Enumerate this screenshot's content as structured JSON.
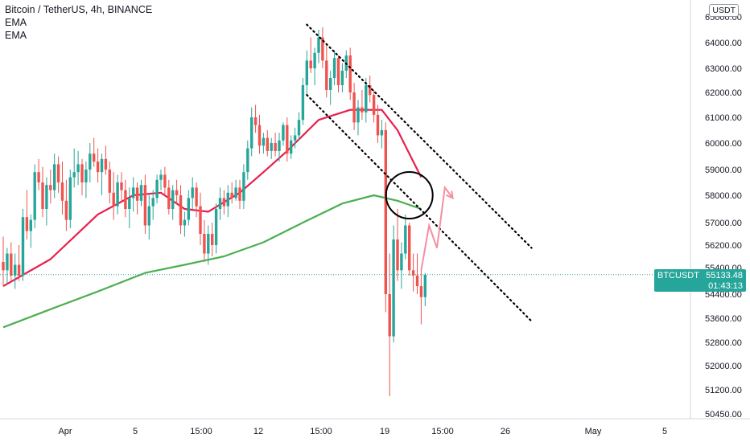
{
  "legend": {
    "title": "Bitcoin / TetherUS, 4h, BINANCE",
    "ema1": "EMA",
    "ema2": "EMA"
  },
  "price_axis": {
    "currency": "USDT",
    "ticks": [
      "65000.00",
      "64000.00",
      "63000.00",
      "62000.00",
      "61000.00",
      "60000.00",
      "59000.00",
      "58000.00",
      "57000.00",
      "56200.00",
      "55400.00",
      "54400.00",
      "53600.00",
      "52800.00",
      "52000.00",
      "51200.00",
      "50450.00"
    ]
  },
  "time_axis": {
    "ticks": [
      "Apr",
      "5",
      "15:00",
      "12",
      "15:00",
      "19",
      "15:00",
      "26",
      "May",
      "5"
    ]
  },
  "last_price": {
    "symbol": "BTCUSDT",
    "price": "55133.48",
    "countdown": "01:43:13"
  },
  "colors": {
    "up": "#26a69a",
    "down": "#ef5350",
    "ema_fast": "#e91e4d",
    "ema_slow": "#4caf50",
    "projection": "#f48fa3",
    "last_price_line": "#26a69a"
  },
  "chart_data": {
    "type": "candlestick",
    "title": "Bitcoin / TetherUS, 4h, BINANCE",
    "candles": [
      [
        55600,
        56500,
        54700,
        55300
      ],
      [
        55300,
        56100,
        54800,
        55900
      ],
      [
        55900,
        56300,
        54900,
        55100
      ],
      [
        55100,
        55900,
        54600,
        55500
      ],
      [
        55500,
        56200,
        54900,
        55100
      ],
      [
        55100,
        57500,
        54900,
        57200
      ],
      [
        57200,
        58200,
        56400,
        56700
      ],
      [
        56700,
        57300,
        56100,
        57100
      ],
      [
        57100,
        59200,
        56800,
        58900
      ],
      [
        58900,
        59400,
        58200,
        58500
      ],
      [
        58500,
        59100,
        57200,
        57500
      ],
      [
        57500,
        58700,
        56900,
        58400
      ],
      [
        58400,
        59000,
        57700,
        58200
      ],
      [
        58200,
        59600,
        57900,
        59200
      ],
      [
        59200,
        59500,
        58100,
        58500
      ],
      [
        58500,
        59300,
        57300,
        57800
      ],
      [
        57800,
        58600,
        56700,
        57100
      ],
      [
        57100,
        59000,
        56800,
        58700
      ],
      [
        58700,
        59800,
        58300,
        58900
      ],
      [
        58900,
        59700,
        58400,
        59200
      ],
      [
        59200,
        59400,
        58000,
        58500
      ],
      [
        58500,
        59300,
        57900,
        59000
      ],
      [
        59000,
        60000,
        58500,
        59600
      ],
      [
        59600,
        60200,
        59100,
        59300
      ],
      [
        59300,
        59800,
        58500,
        58900
      ],
      [
        58900,
        59600,
        58000,
        59400
      ],
      [
        59400,
        59900,
        58800,
        59000
      ],
      [
        59000,
        59300,
        57700,
        58100
      ],
      [
        58100,
        58900,
        57100,
        57600
      ],
      [
        57600,
        58800,
        57300,
        58500
      ],
      [
        58500,
        58900,
        57800,
        58200
      ],
      [
        58200,
        58600,
        57200,
        57500
      ],
      [
        57500,
        58300,
        56800,
        57900
      ],
      [
        57900,
        58700,
        57400,
        58300
      ],
      [
        58300,
        58500,
        57300,
        57800
      ],
      [
        57800,
        58600,
        57600,
        58400
      ],
      [
        58400,
        58800,
        56600,
        56900
      ],
      [
        56900,
        58000,
        56400,
        57600
      ],
      [
        57600,
        58200,
        57100,
        57900
      ],
      [
        57900,
        58800,
        57700,
        58600
      ],
      [
        58600,
        59000,
        58200,
        58800
      ],
      [
        58800,
        59100,
        58000,
        58300
      ],
      [
        58300,
        58600,
        57300,
        57500
      ],
      [
        57500,
        58400,
        57100,
        58200
      ],
      [
        58200,
        58600,
        57700,
        58000
      ],
      [
        58000,
        58400,
        56600,
        56900
      ],
      [
        56900,
        57400,
        56500,
        57100
      ],
      [
        57100,
        58200,
        56900,
        57900
      ],
      [
        57900,
        58700,
        57500,
        58300
      ],
      [
        58300,
        58500,
        57200,
        57600
      ],
      [
        57600,
        58100,
        56200,
        56600
      ],
      [
        56600,
        57100,
        55600,
        55900
      ],
      [
        55900,
        56900,
        55500,
        56600
      ],
      [
        56600,
        57000,
        55800,
        56200
      ],
      [
        56200,
        57700,
        55900,
        57500
      ],
      [
        57500,
        58300,
        57100,
        57900
      ],
      [
        57900,
        58200,
        57300,
        57600
      ],
      [
        57600,
        58400,
        57200,
        58100
      ],
      [
        58100,
        58500,
        57700,
        57900
      ],
      [
        57900,
        58600,
        57800,
        58300
      ],
      [
        58300,
        58600,
        57500,
        57800
      ],
      [
        57800,
        59200,
        57500,
        58900
      ],
      [
        58900,
        60100,
        58600,
        59800
      ],
      [
        59800,
        61400,
        59500,
        61000
      ],
      [
        61000,
        61500,
        60400,
        60700
      ],
      [
        60700,
        61100,
        59600,
        59900
      ],
      [
        59900,
        60400,
        59600,
        60200
      ],
      [
        60200,
        60500,
        59500,
        59700
      ],
      [
        59700,
        60200,
        59400,
        60000
      ],
      [
        60000,
        60400,
        59500,
        59700
      ],
      [
        59700,
        60400,
        59300,
        60100
      ],
      [
        60100,
        60800,
        59900,
        60700
      ],
      [
        60700,
        61000,
        59300,
        59600
      ],
      [
        59600,
        60300,
        59400,
        60100
      ],
      [
        60100,
        60600,
        59800,
        60300
      ],
      [
        60300,
        61200,
        60100,
        60900
      ],
      [
        60900,
        62600,
        60700,
        62300
      ],
      [
        62300,
        63700,
        61900,
        63300
      ],
      [
        63300,
        64200,
        62800,
        63000
      ],
      [
        63000,
        63800,
        62300,
        63600
      ],
      [
        63600,
        64500,
        63200,
        64200
      ],
      [
        64200,
        64600,
        63000,
        63300
      ],
      [
        63300,
        63900,
        61800,
        62100
      ],
      [
        62100,
        62900,
        61500,
        62600
      ],
      [
        62600,
        63700,
        62300,
        63400
      ],
      [
        63400,
        63500,
        62000,
        62300
      ],
      [
        62300,
        63200,
        62000,
        62900
      ],
      [
        62900,
        63700,
        62600,
        63500
      ],
      [
        63500,
        63800,
        61700,
        62000
      ],
      [
        62000,
        62400,
        60500,
        60800
      ],
      [
        60800,
        61700,
        60300,
        61400
      ],
      [
        61400,
        62100,
        60900,
        61200
      ],
      [
        61200,
        62600,
        60800,
        62300
      ],
      [
        62300,
        62700,
        61600,
        61900
      ],
      [
        61900,
        62100,
        60800,
        61100
      ],
      [
        61100,
        61500,
        60000,
        60300
      ],
      [
        60300,
        60900,
        59800,
        60500
      ],
      [
        60500,
        60800,
        53800,
        54400
      ],
      [
        54400,
        55900,
        51000,
        53000
      ],
      [
        53000,
        56900,
        52800,
        56400
      ],
      [
        56400,
        57500,
        54900,
        55300
      ],
      [
        55300,
        56300,
        54600,
        55900
      ],
      [
        55900,
        57300,
        55700,
        56900
      ],
      [
        56900,
        57000,
        55100,
        55300
      ],
      [
        55300,
        55900,
        54500,
        55100
      ],
      [
        55100,
        55900,
        54400,
        54700
      ],
      [
        54700,
        55300,
        53400,
        54300
      ],
      [
        54300,
        55200,
        54000,
        55133
      ]
    ],
    "series": [
      {
        "name": "EMA",
        "color": "#e91e4d",
        "values": [
          [
            0,
            54700
          ],
          [
            12,
            55700
          ],
          [
            24,
            57300
          ],
          [
            33,
            58000
          ],
          [
            40,
            58100
          ],
          [
            46,
            57500
          ],
          [
            52,
            57400
          ],
          [
            60,
            58100
          ],
          [
            66,
            58900
          ],
          [
            72,
            59700
          ],
          [
            80,
            60900
          ],
          [
            88,
            61300
          ],
          [
            96,
            61300
          ],
          [
            100,
            60500
          ],
          [
            104,
            59300
          ],
          [
            106,
            58700
          ]
        ]
      },
      {
        "name": "EMA",
        "color": "#4caf50",
        "values": [
          [
            0,
            53300
          ],
          [
            12,
            53900
          ],
          [
            24,
            54500
          ],
          [
            36,
            55200
          ],
          [
            46,
            55500
          ],
          [
            56,
            55800
          ],
          [
            66,
            56300
          ],
          [
            76,
            57000
          ],
          [
            86,
            57700
          ],
          [
            94,
            58000
          ],
          [
            100,
            57800
          ],
          [
            106,
            57500
          ]
        ]
      }
    ],
    "trendlines": [
      {
        "style": "dotted",
        "from": [
          77,
          64700
        ],
        "to": [
          134,
          56100
        ]
      },
      {
        "style": "dotted",
        "from": [
          77,
          61900
        ],
        "to": [
          134,
          53500
        ]
      }
    ],
    "projection": [
      [
        106,
        55300
      ],
      [
        108,
        56900
      ],
      [
        110,
        56100
      ],
      [
        112,
        58300
      ],
      [
        114,
        57900
      ]
    ],
    "annotations": [
      {
        "type": "circle",
        "center": [
          103,
          58000
        ]
      }
    ],
    "last_price": 55133.48,
    "ylim": [
      50200,
      65500
    ],
    "x_ticks": [
      "Apr",
      "5",
      "15:00",
      "12",
      "15:00",
      "19",
      "15:00",
      "26",
      "May",
      "5"
    ],
    "y_ticks": [
      "65000.00",
      "64000.00",
      "63000.00",
      "62000.00",
      "61000.00",
      "60000.00",
      "59000.00",
      "58000.00",
      "57000.00",
      "56200.00",
      "55400.00",
      "54400.00",
      "53600.00",
      "52800.00",
      "52000.00",
      "51200.00",
      "50450.00"
    ]
  }
}
